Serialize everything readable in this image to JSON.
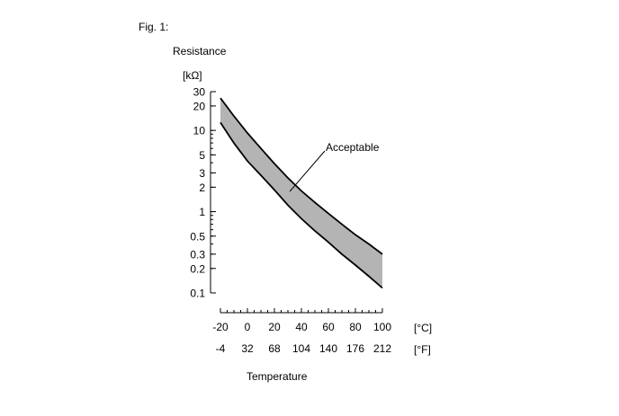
{
  "figure": {
    "label": "Fig. 1:"
  },
  "chart_data": {
    "type": "area",
    "ylabel": "Resistance",
    "yunit": "[kΩ]",
    "xlabel": "Temperature",
    "yscale": "log",
    "ylim": [
      0.1,
      30
    ],
    "xlim": [
      -20,
      100
    ],
    "grid": false,
    "y_ticks": [
      "30",
      "20",
      "10",
      "5",
      "3",
      "2",
      "1",
      "0.5",
      "0.3",
      "0.2",
      "0.1"
    ],
    "x_ticks_c": [
      "-20",
      "0",
      "20",
      "40",
      "60",
      "80",
      "100"
    ],
    "x_ticks_f": [
      "-4",
      "32",
      "68",
      "104",
      "140",
      "176",
      "212"
    ],
    "x_unit_c": "[°C]",
    "x_unit_f": "[°F]",
    "band_label": "Acceptable",
    "band_color": "#b4b4b4",
    "series": [
      {
        "x": [
          -20,
          -10,
          0,
          10,
          20,
          30,
          40,
          50,
          60,
          70,
          80,
          90,
          100
        ],
        "values": [
          25,
          15,
          9.3,
          6.0,
          3.9,
          2.6,
          1.8,
          1.3,
          0.95,
          0.7,
          0.52,
          0.4,
          0.3
        ]
      },
      {
        "x": [
          -20,
          -10,
          0,
          10,
          20,
          30,
          40,
          50,
          60,
          70,
          80,
          90,
          100
        ],
        "values": [
          12.5,
          7.0,
          4.2,
          2.8,
          1.85,
          1.2,
          0.82,
          0.58,
          0.42,
          0.3,
          0.22,
          0.16,
          0.115
        ]
      }
    ]
  }
}
